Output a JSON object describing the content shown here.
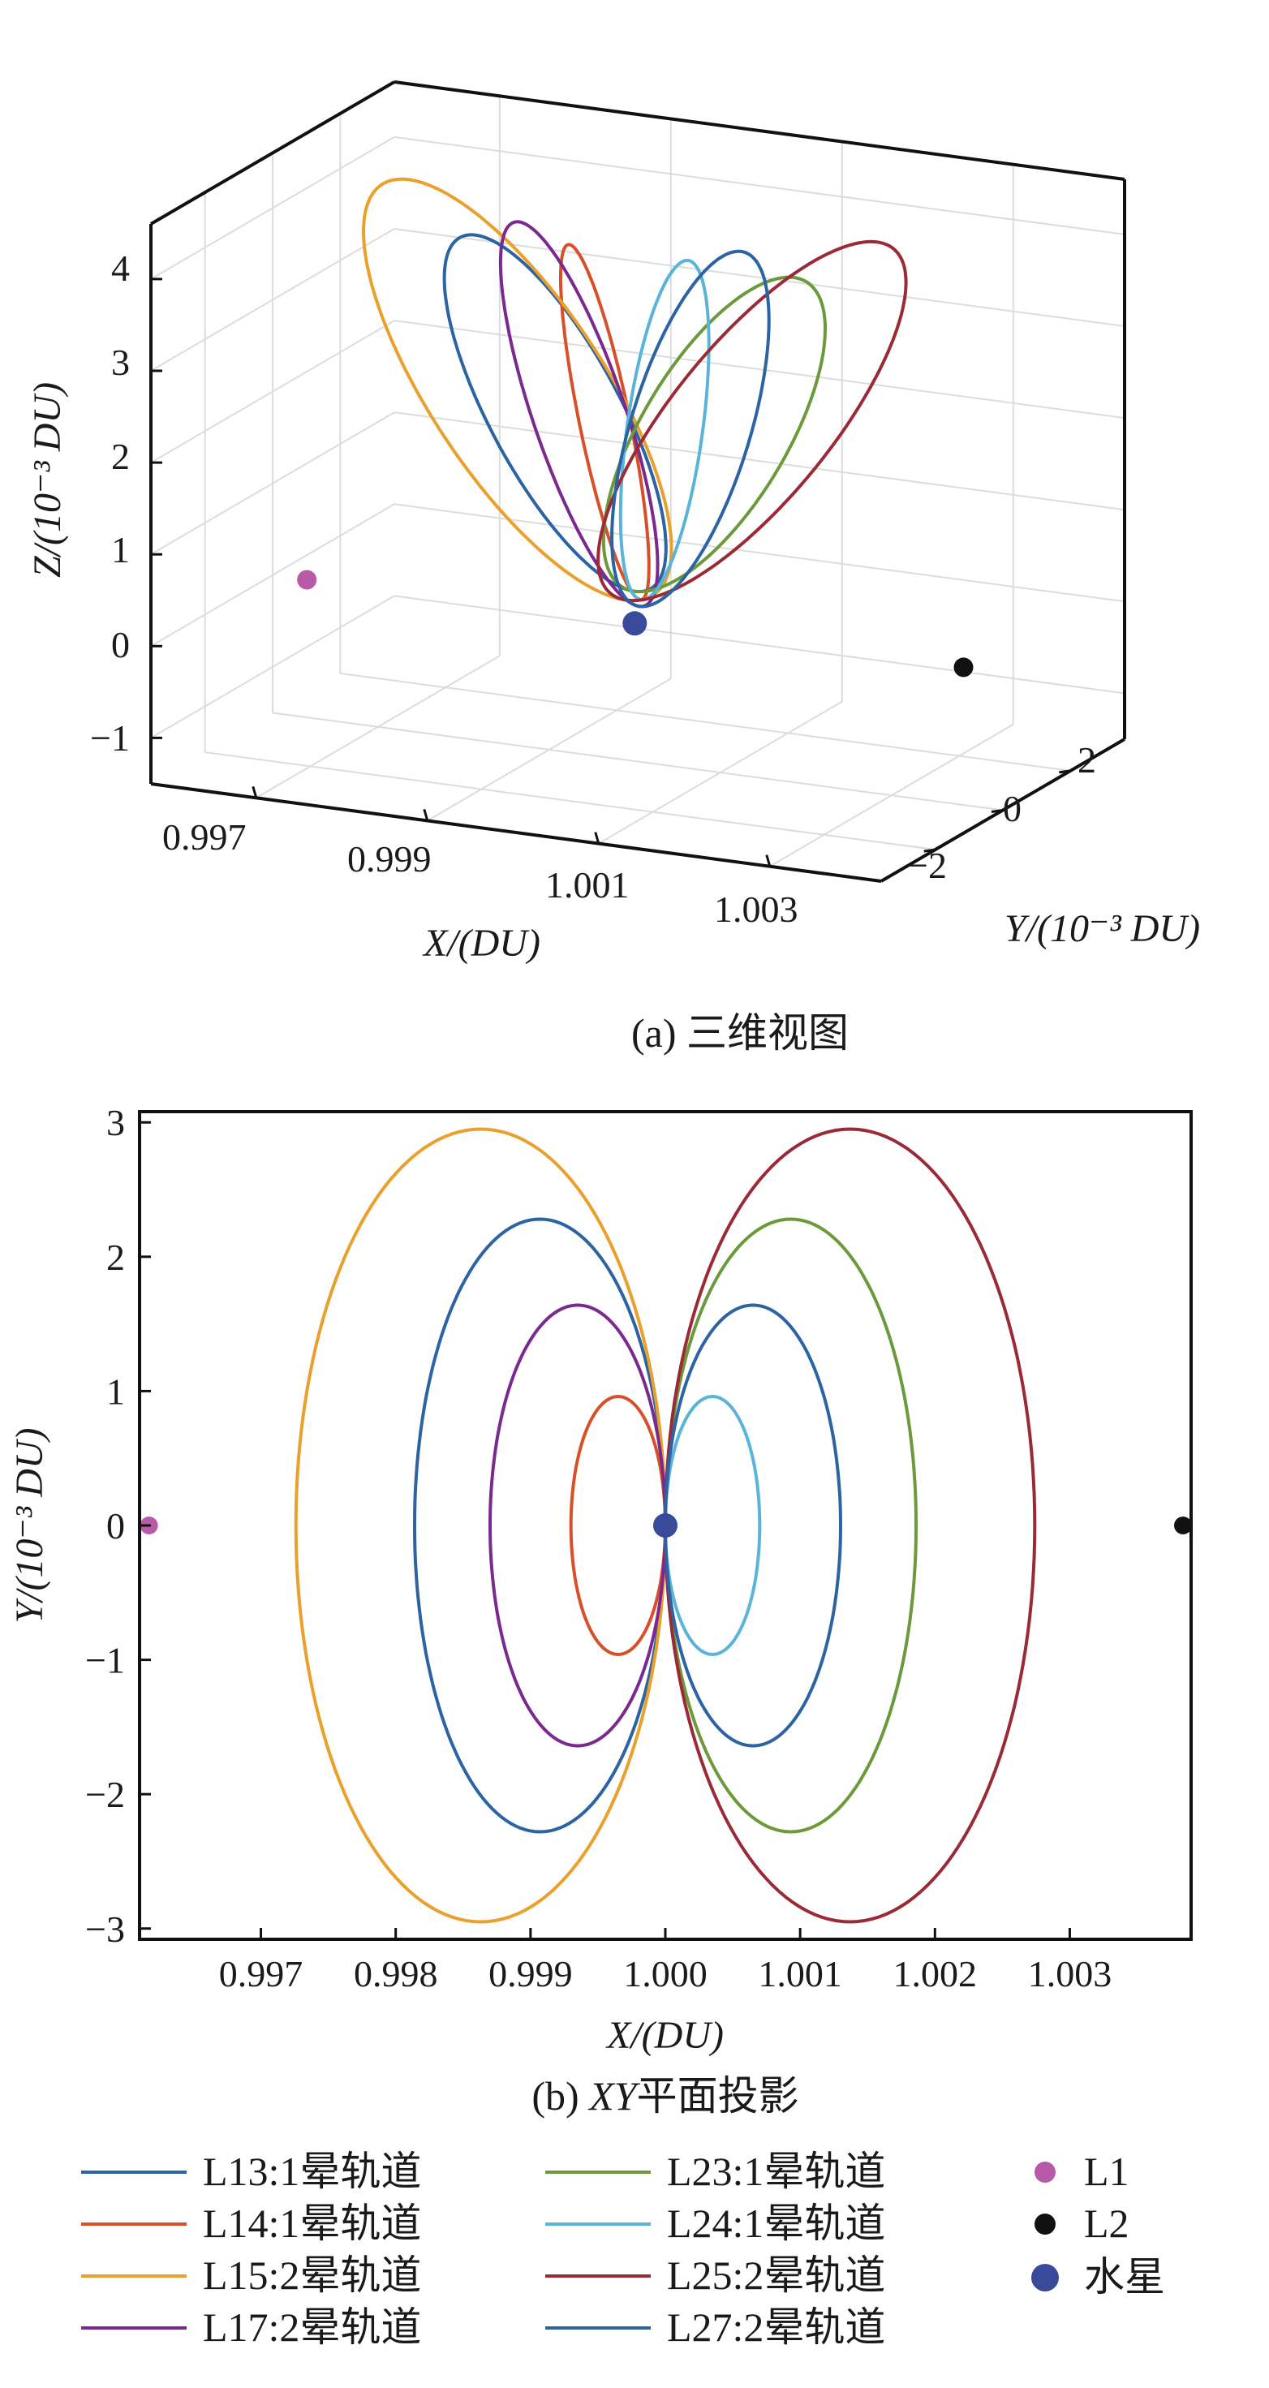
{
  "chart_data": [
    {
      "type": "line3d",
      "caption": "(a) 三维视图",
      "x_label": "X/(DU)",
      "y_label": "Y/(10⁻³ DU)",
      "z_label": "Z/(10⁻³ DU)",
      "x_ticks": [
        "0.997",
        "0.999",
        "1.001",
        "1.003"
      ],
      "y_ticks": [
        "2",
        "0",
        "−2"
      ],
      "z_ticks": [
        "4",
        "3",
        "2",
        "1",
        "0",
        "−1"
      ],
      "series": [
        {
          "name": "L13:1晕轨道",
          "x_center": 0.99907,
          "x_halfwidth": 0.00093,
          "y_amp": 2.28,
          "z_low": 0.35,
          "z_high": 4.0
        },
        {
          "name": "L14:1晕轨道",
          "x_center": 0.99965,
          "x_halfwidth": 0.00035,
          "y_amp": 0.96,
          "z_low": 0.3,
          "z_high": 4.0
        },
        {
          "name": "L15:2晕轨道",
          "x_center": 0.99863,
          "x_halfwidth": 0.00137,
          "y_amp": 2.95,
          "z_low": 0.25,
          "z_high": 4.5
        },
        {
          "name": "L17:2晕轨道",
          "x_center": 0.99935,
          "x_halfwidth": 0.00065,
          "y_amp": 1.64,
          "z_low": 0.2,
          "z_high": 4.2
        },
        {
          "name": "L23:1晕轨道",
          "x_center": 1.00093,
          "x_halfwidth": 0.00093,
          "y_amp": 2.28,
          "z_low": 0.35,
          "z_high": 4.0
        },
        {
          "name": "L24:1晕轨道",
          "x_center": 1.00035,
          "x_halfwidth": 0.00035,
          "y_amp": 0.96,
          "z_low": 0.3,
          "z_high": 4.0
        },
        {
          "name": "L25:2晕轨道",
          "x_center": 1.00137,
          "x_halfwidth": 0.00137,
          "y_amp": 2.95,
          "z_low": 0.25,
          "z_high": 4.5
        },
        {
          "name": "L27:2晕轨道",
          "x_center": 1.00065,
          "x_halfwidth": 0.00065,
          "y_amp": 1.64,
          "z_low": 0.2,
          "z_high": 4.2
        }
      ],
      "points": [
        {
          "name": "L1",
          "x": 0.99617,
          "y": 0,
          "z": 0
        },
        {
          "name": "L2",
          "x": 1.00384,
          "y": 0,
          "z": 0
        },
        {
          "name": "水星",
          "x": 1.0,
          "y": 0,
          "z": 0
        }
      ]
    },
    {
      "type": "line",
      "caption": "(b) XY平面投影",
      "caption_prefix": "(b) ",
      "caption_italic": "XY",
      "caption_suffix": "平面投影",
      "x_label": "X/(DU)",
      "y_label": "Y/(10⁻³ DU)",
      "xlim": [
        0.9961,
        1.0039
      ],
      "ylim": [
        -3.08,
        3.08
      ],
      "x_ticks": [
        {
          "value": 0.997,
          "label": "0.997"
        },
        {
          "value": 0.998,
          "label": "0.998"
        },
        {
          "value": 0.999,
          "label": "0.999"
        },
        {
          "value": 1.0,
          "label": "1.000"
        },
        {
          "value": 1.001,
          "label": "1.001"
        },
        {
          "value": 1.002,
          "label": "1.002"
        },
        {
          "value": 1.003,
          "label": "1.003"
        }
      ],
      "y_ticks": [
        {
          "value": 3,
          "label": "3"
        },
        {
          "value": 2,
          "label": "2"
        },
        {
          "value": 1,
          "label": "1"
        },
        {
          "value": 0,
          "label": "0"
        },
        {
          "value": -1,
          "label": "−1"
        },
        {
          "value": -2,
          "label": "−2"
        },
        {
          "value": -3,
          "label": "−3"
        }
      ],
      "series": [
        {
          "name": "L13:1晕轨道",
          "x_center": 0.99907,
          "x_halfwidth": 0.00093,
          "y_amp": 2.28,
          "color": "#2c63a3"
        },
        {
          "name": "L14:1晕轨道",
          "x_center": 0.99965,
          "x_halfwidth": 0.00035,
          "y_amp": 0.96,
          "color": "#d8502a"
        },
        {
          "name": "L15:2晕轨道",
          "x_center": 0.99863,
          "x_halfwidth": 0.00137,
          "y_amp": 2.95,
          "color": "#e9a02c"
        },
        {
          "name": "L17:2晕轨道",
          "x_center": 0.99935,
          "x_halfwidth": 0.00065,
          "y_amp": 1.64,
          "color": "#7a2a8f"
        },
        {
          "name": "L23:1晕轨道",
          "x_center": 1.00093,
          "x_halfwidth": 0.00093,
          "y_amp": 2.28,
          "color": "#6a9a3a"
        },
        {
          "name": "L24:1晕轨道",
          "x_center": 1.00035,
          "x_halfwidth": 0.00035,
          "y_amp": 0.96,
          "color": "#5ab4da"
        },
        {
          "name": "L25:2晕轨道",
          "x_center": 1.00137,
          "x_halfwidth": 0.00137,
          "y_amp": 2.95,
          "color": "#9a2b36"
        },
        {
          "name": "L27:2晕轨道",
          "x_center": 1.00065,
          "x_halfwidth": 0.00065,
          "y_amp": 1.64,
          "color": "#2c63a3"
        }
      ],
      "points": [
        {
          "name": "L1",
          "x": 0.99617,
          "y": 0,
          "color": "#b85aa8"
        },
        {
          "name": "L2",
          "x": 1.00384,
          "y": 0,
          "color": "#111111"
        },
        {
          "name": "水星",
          "x": 1.0,
          "y": 0,
          "color": "#3a4a9a"
        }
      ]
    }
  ],
  "legend": {
    "items": [
      {
        "label": "L13:1晕轨道",
        "kind": "line",
        "color": "#2c63a3"
      },
      {
        "label": "L14:1晕轨道",
        "kind": "line",
        "color": "#d8502a"
      },
      {
        "label": "L15:2晕轨道",
        "kind": "line",
        "color": "#e9a02c"
      },
      {
        "label": "L17:2晕轨道",
        "kind": "line",
        "color": "#7a2a8f"
      },
      {
        "label": "L23:1晕轨道",
        "kind": "line",
        "color": "#6a9a3a"
      },
      {
        "label": "L24:1晕轨道",
        "kind": "line",
        "color": "#5ab4da"
      },
      {
        "label": "L25:2晕轨道",
        "kind": "line",
        "color": "#9a2b36"
      },
      {
        "label": "L27:2晕轨道",
        "kind": "line",
        "color": "#2c63a3"
      },
      {
        "label": "L1",
        "kind": "dot",
        "color": "#b85aa8"
      },
      {
        "label": "L2",
        "kind": "dot",
        "color": "#111111"
      },
      {
        "label": "水星",
        "kind": "dot",
        "color": "#3a4a9a"
      }
    ]
  }
}
